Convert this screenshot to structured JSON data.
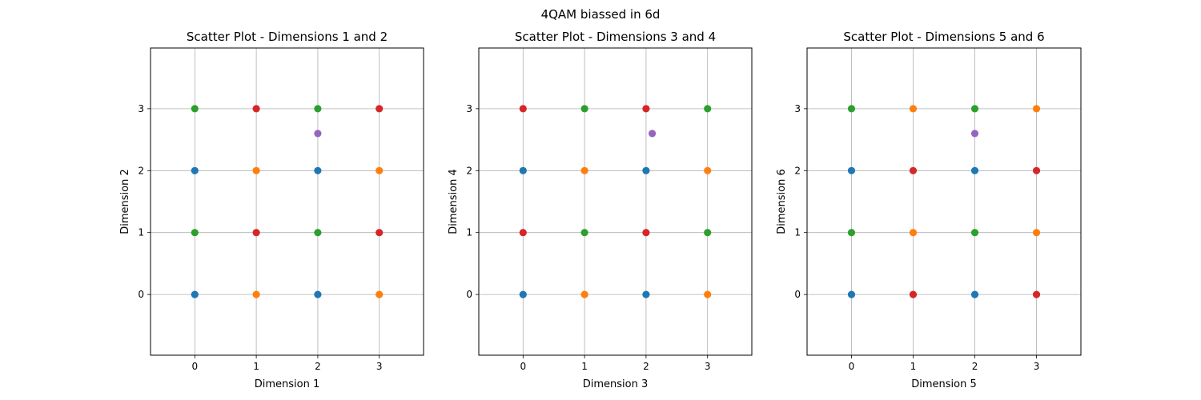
{
  "suptitle": "4QAM biassed in 6d",
  "palette": {
    "blue": "#1f77b4",
    "orange": "#ff7f0e",
    "green": "#2ca02c",
    "red": "#d62728",
    "purple": "#9467bd"
  },
  "chart_data": [
    {
      "type": "scatter",
      "title": "Scatter Plot - Dimensions 1 and 2",
      "xlabel": "Dimension 1",
      "ylabel": "Dimension 2",
      "xlim": [
        -0.72,
        3.72
      ],
      "ylim": [
        -0.98,
        3.98
      ],
      "xticks": [
        0,
        1,
        2,
        3
      ],
      "yticks": [
        0,
        1,
        2,
        3
      ],
      "grid": true,
      "points": [
        {
          "x": 0,
          "y": 0,
          "color": "blue"
        },
        {
          "x": 0,
          "y": 1,
          "color": "green"
        },
        {
          "x": 0,
          "y": 2,
          "color": "blue"
        },
        {
          "x": 0,
          "y": 3,
          "color": "green"
        },
        {
          "x": 1,
          "y": 0,
          "color": "orange"
        },
        {
          "x": 1,
          "y": 1,
          "color": "red"
        },
        {
          "x": 1,
          "y": 2,
          "color": "orange"
        },
        {
          "x": 1,
          "y": 3,
          "color": "red"
        },
        {
          "x": 2,
          "y": 0,
          "color": "blue"
        },
        {
          "x": 2,
          "y": 1,
          "color": "green"
        },
        {
          "x": 2,
          "y": 2,
          "color": "blue"
        },
        {
          "x": 2,
          "y": 3,
          "color": "green"
        },
        {
          "x": 3,
          "y": 0,
          "color": "orange"
        },
        {
          "x": 3,
          "y": 1,
          "color": "red"
        },
        {
          "x": 3,
          "y": 2,
          "color": "orange"
        },
        {
          "x": 3,
          "y": 3,
          "color": "red"
        },
        {
          "x": 2.0,
          "y": 2.6,
          "color": "purple"
        }
      ]
    },
    {
      "type": "scatter",
      "title": "Scatter Plot - Dimensions 3 and 4",
      "xlabel": "Dimension 3",
      "ylabel": "Dimension 4",
      "xlim": [
        -0.72,
        3.72
      ],
      "ylim": [
        -0.98,
        3.98
      ],
      "xticks": [
        0,
        1,
        2,
        3
      ],
      "yticks": [
        0,
        1,
        2,
        3
      ],
      "grid": true,
      "points": [
        {
          "x": 0,
          "y": 0,
          "color": "blue"
        },
        {
          "x": 0,
          "y": 1,
          "color": "red"
        },
        {
          "x": 0,
          "y": 2,
          "color": "blue"
        },
        {
          "x": 0,
          "y": 3,
          "color": "red"
        },
        {
          "x": 1,
          "y": 0,
          "color": "orange"
        },
        {
          "x": 1,
          "y": 1,
          "color": "green"
        },
        {
          "x": 1,
          "y": 2,
          "color": "orange"
        },
        {
          "x": 1,
          "y": 3,
          "color": "green"
        },
        {
          "x": 2,
          "y": 0,
          "color": "blue"
        },
        {
          "x": 2,
          "y": 1,
          "color": "red"
        },
        {
          "x": 2,
          "y": 2,
          "color": "blue"
        },
        {
          "x": 2,
          "y": 3,
          "color": "red"
        },
        {
          "x": 3,
          "y": 0,
          "color": "orange"
        },
        {
          "x": 3,
          "y": 1,
          "color": "green"
        },
        {
          "x": 3,
          "y": 2,
          "color": "orange"
        },
        {
          "x": 3,
          "y": 3,
          "color": "green"
        },
        {
          "x": 2.1,
          "y": 2.6,
          "color": "purple"
        }
      ]
    },
    {
      "type": "scatter",
      "title": "Scatter Plot - Dimensions 5 and 6",
      "xlabel": "Dimension 5",
      "ylabel": "Dimension 6",
      "xlim": [
        -0.72,
        3.72
      ],
      "ylim": [
        -0.98,
        3.98
      ],
      "xticks": [
        0,
        1,
        2,
        3
      ],
      "yticks": [
        0,
        1,
        2,
        3
      ],
      "grid": true,
      "points": [
        {
          "x": 0,
          "y": 0,
          "color": "blue"
        },
        {
          "x": 0,
          "y": 1,
          "color": "green"
        },
        {
          "x": 0,
          "y": 2,
          "color": "blue"
        },
        {
          "x": 0,
          "y": 3,
          "color": "green"
        },
        {
          "x": 1,
          "y": 0,
          "color": "red"
        },
        {
          "x": 1,
          "y": 1,
          "color": "orange"
        },
        {
          "x": 1,
          "y": 2,
          "color": "red"
        },
        {
          "x": 1,
          "y": 3,
          "color": "orange"
        },
        {
          "x": 2,
          "y": 0,
          "color": "blue"
        },
        {
          "x": 2,
          "y": 1,
          "color": "green"
        },
        {
          "x": 2,
          "y": 2,
          "color": "blue"
        },
        {
          "x": 2,
          "y": 3,
          "color": "green"
        },
        {
          "x": 3,
          "y": 0,
          "color": "red"
        },
        {
          "x": 3,
          "y": 1,
          "color": "orange"
        },
        {
          "x": 3,
          "y": 2,
          "color": "red"
        },
        {
          "x": 3,
          "y": 3,
          "color": "orange"
        },
        {
          "x": 2.0,
          "y": 2.6,
          "color": "purple"
        }
      ]
    }
  ]
}
